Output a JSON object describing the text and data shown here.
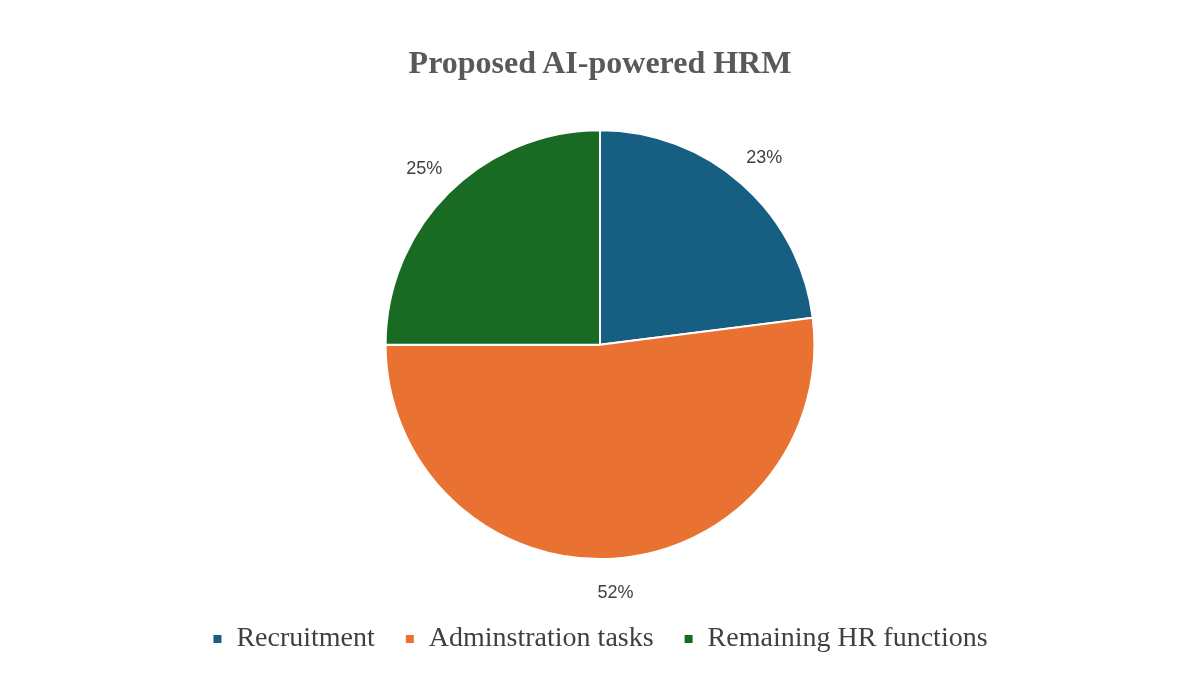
{
  "chart_data": {
    "type": "pie",
    "title": "Proposed AI-powered HRM",
    "categories": [
      "Recruitment",
      "Adminstration tasks",
      "Remaining HR functions"
    ],
    "values": [
      23,
      52,
      25
    ],
    "colors": [
      "#175f82",
      "#e97132",
      "#196b24"
    ],
    "value_labels": [
      "23%",
      "52%",
      "25%"
    ],
    "legend": "bottom"
  }
}
